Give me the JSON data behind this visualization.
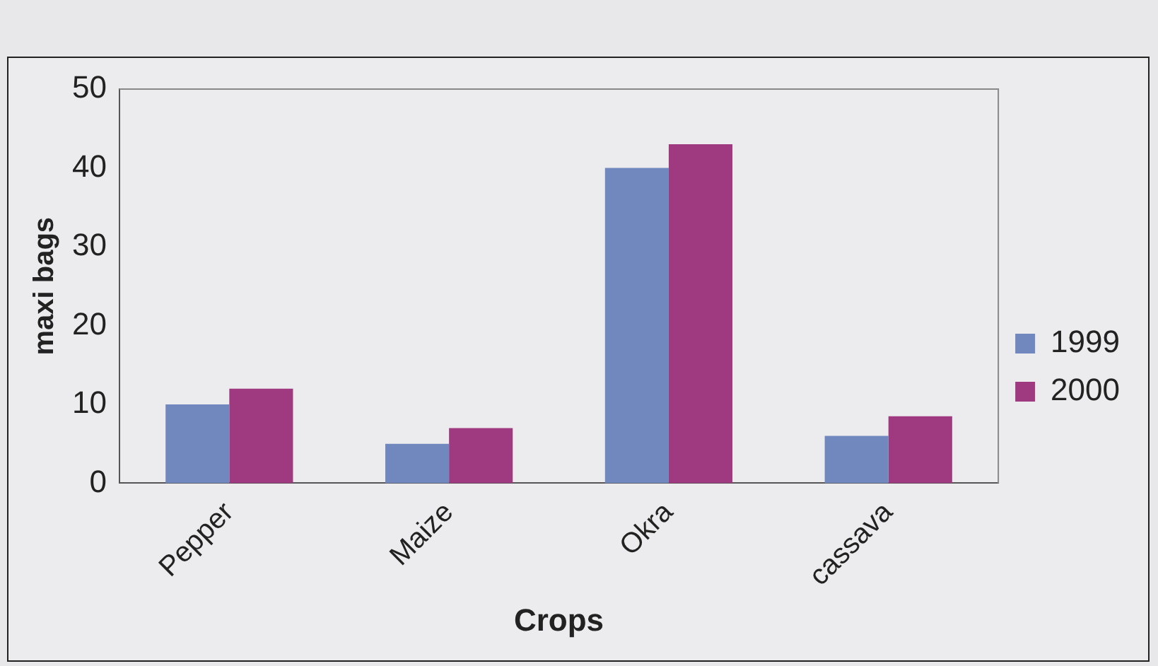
{
  "chart_data": {
    "type": "bar",
    "xlabel": "Crops",
    "ylabel": "maxi bags",
    "categories": [
      "Pepper",
      "Maize",
      "Okra",
      "cassava"
    ],
    "series": [
      {
        "name": "1999",
        "color": "#7088bd",
        "values": [
          10,
          5,
          40,
          6
        ]
      },
      {
        "name": "2000",
        "color": "#a03a80",
        "values": [
          12,
          7,
          43,
          8.5
        ]
      }
    ],
    "ylim": [
      0,
      50
    ],
    "yticks": [
      0,
      10,
      20,
      30,
      40,
      50
    ],
    "grid": false,
    "legend": "right"
  }
}
